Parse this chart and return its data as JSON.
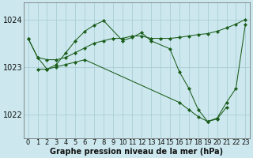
{
  "bg_color": "#cce8ee",
  "grid_color": "#aacdd5",
  "line_color": "#1a5c1a",
  "ylim": [
    1021.5,
    1024.35
  ],
  "xlim": [
    -0.5,
    23.5
  ],
  "yticks": [
    1022,
    1023,
    1024
  ],
  "xticks": [
    0,
    1,
    2,
    3,
    4,
    5,
    6,
    7,
    8,
    9,
    10,
    11,
    12,
    13,
    14,
    15,
    16,
    17,
    18,
    19,
    20,
    21,
    22,
    23
  ],
  "xlabel": "Graphe pression niveau de la mer (hPa)",
  "tick_fontsize": 6,
  "xlabel_fontsize": 7,
  "lineA_x": [
    0,
    1,
    2,
    3,
    4,
    5,
    6,
    7,
    8,
    9,
    10,
    11,
    12,
    13,
    14,
    15,
    16,
    17,
    18,
    19,
    20,
    21,
    22,
    23
  ],
  "lineA_y": [
    1023.6,
    1023.2,
    1023.15,
    1023.15,
    1023.2,
    1023.3,
    1023.4,
    1023.5,
    1023.55,
    1023.6,
    1023.6,
    1023.65,
    1023.65,
    1023.6,
    1023.6,
    1023.6,
    1023.62,
    1023.65,
    1023.68,
    1023.7,
    1023.75,
    1023.82,
    1023.9,
    1024.0
  ],
  "lineB_x": [
    0,
    1,
    2,
    3,
    4,
    5,
    6,
    7,
    8,
    10,
    11,
    12,
    13,
    15,
    16,
    17,
    18,
    19,
    20,
    21,
    22,
    23
  ],
  "lineB_y": [
    1023.6,
    1023.2,
    1022.95,
    1023.05,
    1023.3,
    1023.55,
    1023.75,
    1023.88,
    1023.97,
    1023.55,
    1023.62,
    1023.72,
    1023.55,
    1023.38,
    1022.9,
    1022.55,
    1022.1,
    1021.85,
    1021.92,
    1022.25,
    1022.55,
    1023.9
  ],
  "lineC_x": [
    1,
    2,
    3,
    4,
    5,
    6,
    16,
    17,
    18,
    19,
    20,
    21
  ],
  "lineC_y": [
    1022.95,
    1022.95,
    1023.0,
    1023.05,
    1023.1,
    1023.15,
    1022.25,
    1022.1,
    1021.95,
    1021.85,
    1021.9,
    1022.15
  ]
}
